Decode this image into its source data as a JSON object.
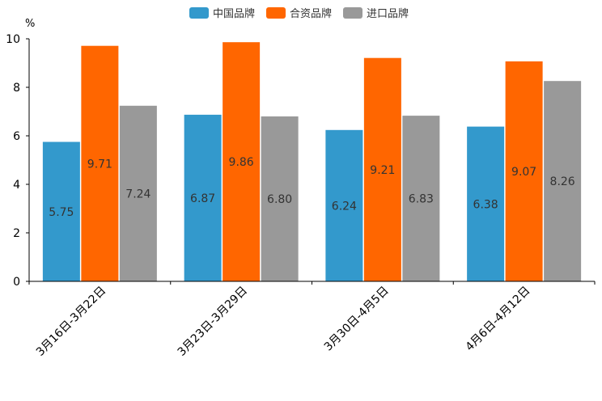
{
  "chart_data": {
    "type": "bar",
    "unit": "%",
    "categories": [
      "3月16日-3月22日",
      "3月23日-3月29日",
      "3月30日-4月5日",
      "4月6日-4月12日"
    ],
    "series": [
      {
        "name": "中国品牌",
        "color": "#3399CC",
        "values": [
          5.75,
          6.87,
          6.24,
          6.38
        ],
        "labels": [
          "5.75",
          "6.87",
          "6.24",
          "6.38"
        ]
      },
      {
        "name": "合资品牌",
        "color": "#FF6600",
        "values": [
          9.71,
          9.86,
          9.21,
          9.07
        ],
        "labels": [
          "9.71",
          "9.86",
          "9.21",
          "9.07"
        ]
      },
      {
        "name": "进口品牌",
        "color": "#999999",
        "values": [
          7.24,
          6.8,
          6.83,
          8.26
        ],
        "labels": [
          "7.24",
          "6.80",
          "6.83",
          "8.26"
        ]
      }
    ],
    "yticks": [
      "0",
      "2",
      "4",
      "6",
      "8",
      "10"
    ],
    "ylim": [
      0,
      10
    ],
    "legend_position": "top-center",
    "grid": false
  }
}
